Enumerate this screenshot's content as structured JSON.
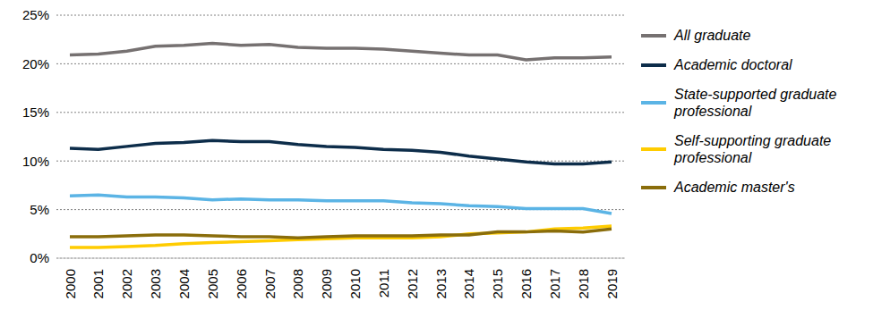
{
  "chart_data": {
    "type": "line",
    "categories": [
      "2000",
      "2001",
      "2002",
      "2003",
      "2004",
      "2005",
      "2006",
      "2007",
      "2008",
      "2009",
      "2010",
      "2011",
      "2012",
      "2013",
      "2014",
      "2015",
      "2016",
      "2017",
      "2018",
      "2019"
    ],
    "series": [
      {
        "name": "All graduate",
        "color": "#767171",
        "values": [
          20.9,
          21.0,
          21.3,
          21.8,
          21.9,
          22.1,
          21.9,
          22.0,
          21.7,
          21.6,
          21.6,
          21.5,
          21.3,
          21.1,
          20.9,
          20.9,
          20.4,
          20.6,
          20.6,
          20.7
        ]
      },
      {
        "name": "Academic doctoral",
        "color": "#0d2d4a",
        "values": [
          11.3,
          11.2,
          11.5,
          11.8,
          11.9,
          12.1,
          12.0,
          12.0,
          11.7,
          11.5,
          11.4,
          11.2,
          11.1,
          10.9,
          10.5,
          10.2,
          9.9,
          9.7,
          9.7,
          9.9
        ]
      },
      {
        "name": "State-supported graduate professional",
        "color": "#5bb4e5",
        "values": [
          6.4,
          6.5,
          6.3,
          6.3,
          6.2,
          6.0,
          6.1,
          6.0,
          6.0,
          5.9,
          5.9,
          5.9,
          5.7,
          5.6,
          5.4,
          5.3,
          5.1,
          5.1,
          5.1,
          4.6
        ]
      },
      {
        "name": "Self-supporting graduate professional",
        "color": "#ffcc00",
        "values": [
          1.1,
          1.1,
          1.2,
          1.3,
          1.5,
          1.6,
          1.7,
          1.8,
          1.9,
          2.0,
          2.1,
          2.1,
          2.1,
          2.2,
          2.5,
          2.6,
          2.7,
          3.0,
          3.1,
          3.3
        ]
      },
      {
        "name": "Academic master's",
        "color": "#8a6d0b",
        "values": [
          2.2,
          2.2,
          2.3,
          2.4,
          2.4,
          2.3,
          2.2,
          2.2,
          2.1,
          2.2,
          2.3,
          2.3,
          2.3,
          2.4,
          2.4,
          2.7,
          2.7,
          2.8,
          2.7,
          3.0
        ]
      }
    ],
    "ylim": [
      0,
      25
    ],
    "yticks": [
      {
        "value": 0,
        "label": "0%"
      },
      {
        "value": 5,
        "label": "5%"
      },
      {
        "value": 10,
        "label": "10%"
      },
      {
        "value": 15,
        "label": "15%"
      },
      {
        "value": 20,
        "label": "20%"
      },
      {
        "value": 25,
        "label": "25%"
      }
    ],
    "grid": true,
    "legend": "right"
  }
}
